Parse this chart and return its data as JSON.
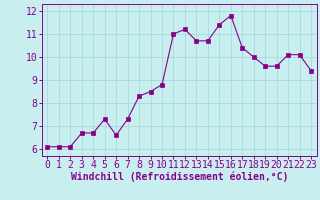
{
  "x": [
    0,
    1,
    2,
    3,
    4,
    5,
    6,
    7,
    8,
    9,
    10,
    11,
    12,
    13,
    14,
    15,
    16,
    17,
    18,
    19,
    20,
    21,
    22,
    23
  ],
  "y": [
    6.1,
    6.1,
    6.1,
    6.7,
    6.7,
    7.3,
    6.6,
    7.3,
    8.3,
    8.5,
    8.8,
    11.0,
    11.2,
    10.7,
    10.7,
    11.4,
    11.8,
    10.4,
    10.0,
    9.6,
    9.6,
    10.1,
    10.1,
    9.4
  ],
  "line_color": "#880088",
  "marker": "s",
  "marker_size": 2.5,
  "bg_color": "#c8eef0",
  "grid_color": "#aadddd",
  "xlabel": "Windchill (Refroidissement éolien,°C)",
  "xlim": [
    -0.5,
    23.5
  ],
  "ylim": [
    5.7,
    12.3
  ],
  "yticks": [
    6,
    7,
    8,
    9,
    10,
    11,
    12
  ],
  "xticks": [
    0,
    1,
    2,
    3,
    4,
    5,
    6,
    7,
    8,
    9,
    10,
    11,
    12,
    13,
    14,
    15,
    16,
    17,
    18,
    19,
    20,
    21,
    22,
    23
  ],
  "tick_color": "#880088",
  "label_color": "#880088",
  "font_size_xlabel": 7,
  "font_size_tick": 7,
  "spine_color": "#880088",
  "linewidth": 0.8
}
